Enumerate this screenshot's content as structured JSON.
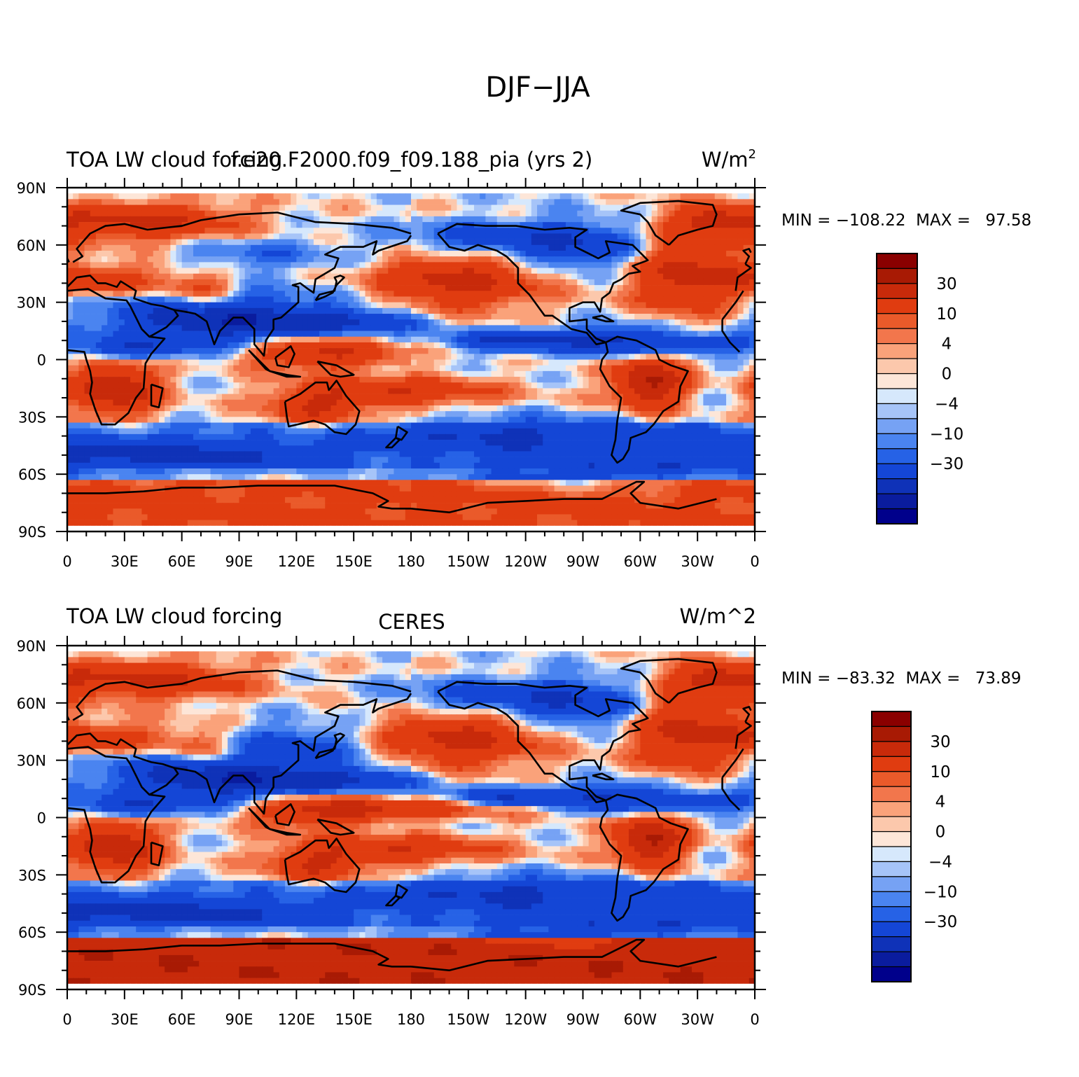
{
  "title": "DJF−JJA",
  "lon_ticks": [
    "0",
    "30E",
    "60E",
    "90E",
    "120E",
    "150E",
    "180",
    "150W",
    "120W",
    "90W",
    "60W",
    "30W",
    "0"
  ],
  "lat_ticks": [
    "90N",
    "60N",
    "30N",
    "0",
    "30S",
    "60S",
    "90S"
  ],
  "colorbar_labels": [
    "30",
    "10",
    "4",
    "0",
    "−4",
    "−10",
    "−30"
  ],
  "colormap": [
    "#00008b",
    "#0a1c9e",
    "#0f32b8",
    "#1446d6",
    "#2662e6",
    "#4a84f0",
    "#76a2f4",
    "#a6c4f8",
    "#d6e8fc",
    "#fde6d8",
    "#fcc8ac",
    "#faa27a",
    "#f2764c",
    "#ea5a2a",
    "#e03c10",
    "#c82a0a",
    "#a81a04",
    "#8a0000"
  ],
  "panels": [
    {
      "id": "model",
      "left_string": "TOA LW cloud forcing",
      "center_string": "f.e20.F2000.f09_f09.188_pia (yrs 2)",
      "right_string": "W/m",
      "right_sup": "2",
      "min_label": "MIN = ",
      "min_value": "−108.22",
      "max_label": "MAX = ",
      "max_value": "97.58"
    },
    {
      "id": "ceres",
      "left_string": "TOA LW cloud forcing",
      "center_string": "CERES",
      "right_string": "W/m^2",
      "right_sup": "",
      "min_label": "MIN = ",
      "min_value": "−83.32",
      "max_label": "MAX = ",
      "max_value": "73.89"
    }
  ]
}
